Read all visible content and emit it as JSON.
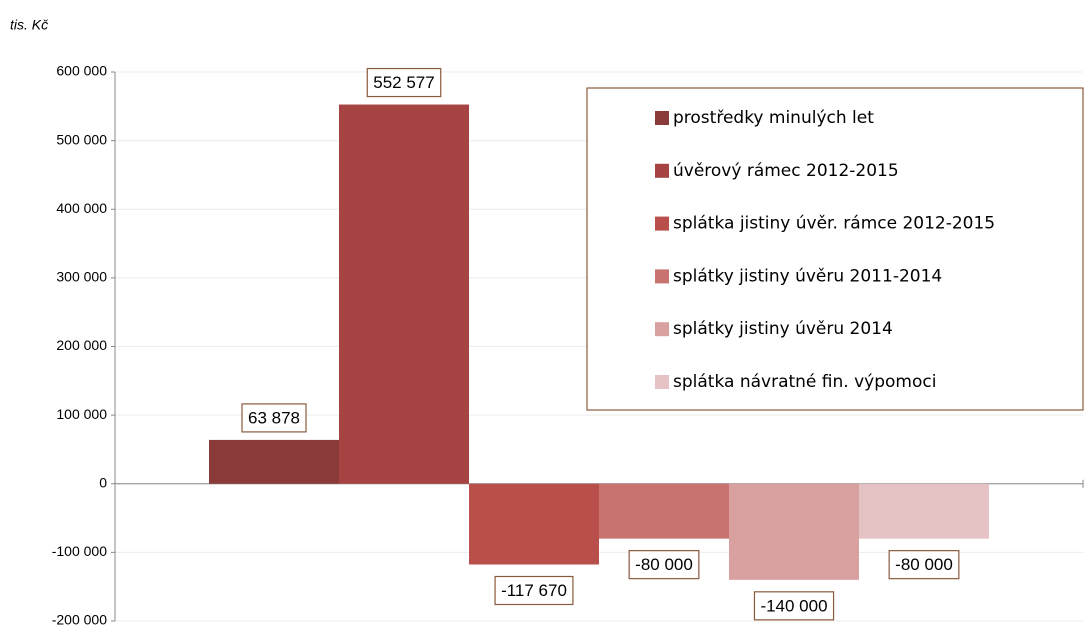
{
  "chart_data": {
    "type": "bar",
    "y_axis_label": "tis. Kč",
    "categories": [
      null
    ],
    "series": [
      {
        "name": "prostředky minulých let",
        "color": "#8b3a3a",
        "values": [
          63878
        ],
        "value_labels": [
          "63 878"
        ]
      },
      {
        "name": "úvěrový rámec 2012-2015",
        "color": "#a54442",
        "values": [
          552577
        ],
        "value_labels": [
          "552 577"
        ]
      },
      {
        "name": "splátka jistiny úvěr. rámce 2012-2015",
        "color": "#b84f4b",
        "values": [
          -117670
        ],
        "value_labels": [
          "-117 670"
        ]
      },
      {
        "name": "splátky jistiny úvěru 2011-2014",
        "color": "#c97370",
        "values": [
          -80000
        ],
        "value_labels": [
          "-80 000"
        ]
      },
      {
        "name": "splátky jistiny úvěru 2014",
        "color": "#d9a0a0",
        "values": [
          -140000
        ],
        "value_labels": [
          "-140 000"
        ]
      },
      {
        "name": "splátka návratné fin. výpomoci",
        "color": "#e5c3c4",
        "values": [
          -80000
        ],
        "value_labels": [
          "-80 000"
        ]
      }
    ],
    "ylim": [
      -200000,
      600000
    ],
    "yticks": [
      {
        "value": -200000,
        "label": "-200 000"
      },
      {
        "value": -100000,
        "label": "-100 000"
      },
      0,
      {
        "value": 100000,
        "label": "100 000"
      },
      {
        "value": 200000,
        "label": "200 000"
      },
      {
        "value": 300000,
        "label": "300 000"
      },
      {
        "value": 400000,
        "label": "400 000"
      },
      {
        "value": 500000,
        "label": "500 000"
      },
      {
        "value": 600000,
        "label": "600 000"
      }
    ],
    "grid": true,
    "legend": "upper right"
  }
}
